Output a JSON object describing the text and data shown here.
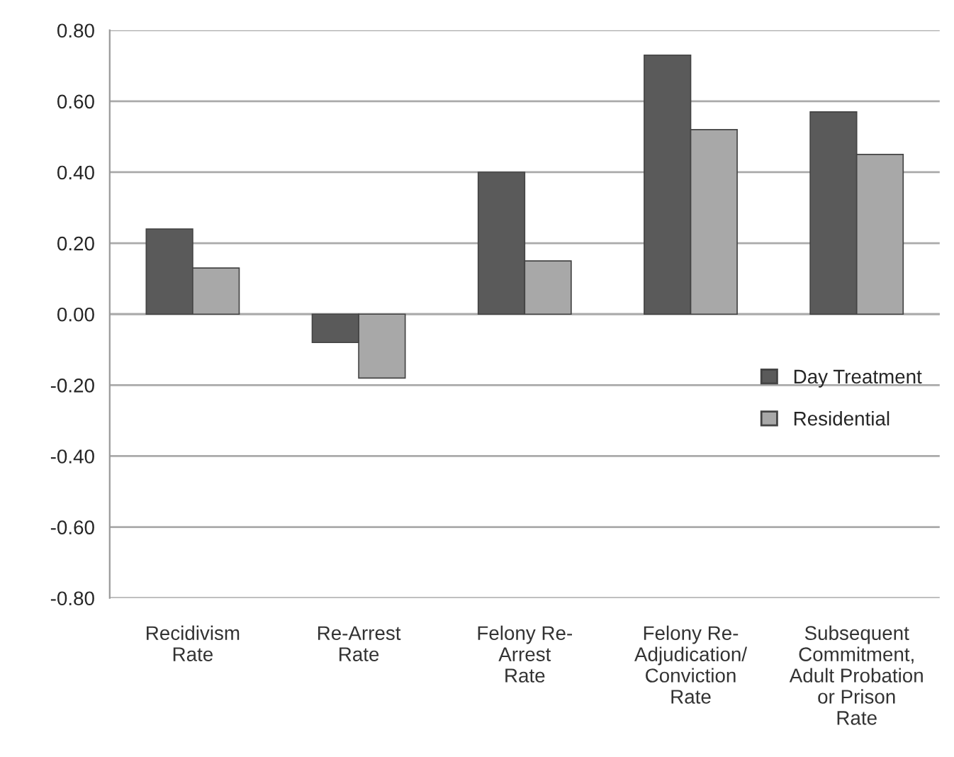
{
  "chart_data": {
    "type": "bar",
    "categories": [
      "Recidivism\nRate",
      "Re-Arrest\nRate",
      "Felony Re-\nArrest\nRate",
      "Felony Re-\nAdjudication/\nConviction\nRate",
      "Subsequent\nCommitment,\nAdult Probation\nor Prison\nRate"
    ],
    "series": [
      {
        "name": "Day Treatment",
        "color": "#5a5a5a",
        "values": [
          0.24,
          -0.08,
          0.4,
          0.73,
          0.57
        ]
      },
      {
        "name": "Residential",
        "color": "#a8a8a8",
        "values": [
          0.13,
          -0.18,
          0.15,
          0.52,
          0.45
        ]
      }
    ],
    "ylim": [
      -0.8,
      0.8
    ],
    "yticks": [
      {
        "value": -0.8,
        "label": "-0.80"
      },
      {
        "value": -0.6,
        "label": "-0.60"
      },
      {
        "value": -0.4,
        "label": "-0.40"
      },
      {
        "value": -0.2,
        "label": "-0.20"
      },
      {
        "value": 0,
        "label": "0.00"
      },
      {
        "value": 0.2,
        "label": "0.20"
      },
      {
        "value": 0.4,
        "label": "0.40"
      },
      {
        "value": 0.6,
        "label": "0.60"
      },
      {
        "value": 0.8,
        "label": "0.80"
      }
    ],
    "grid": "y",
    "legend": "right"
  }
}
